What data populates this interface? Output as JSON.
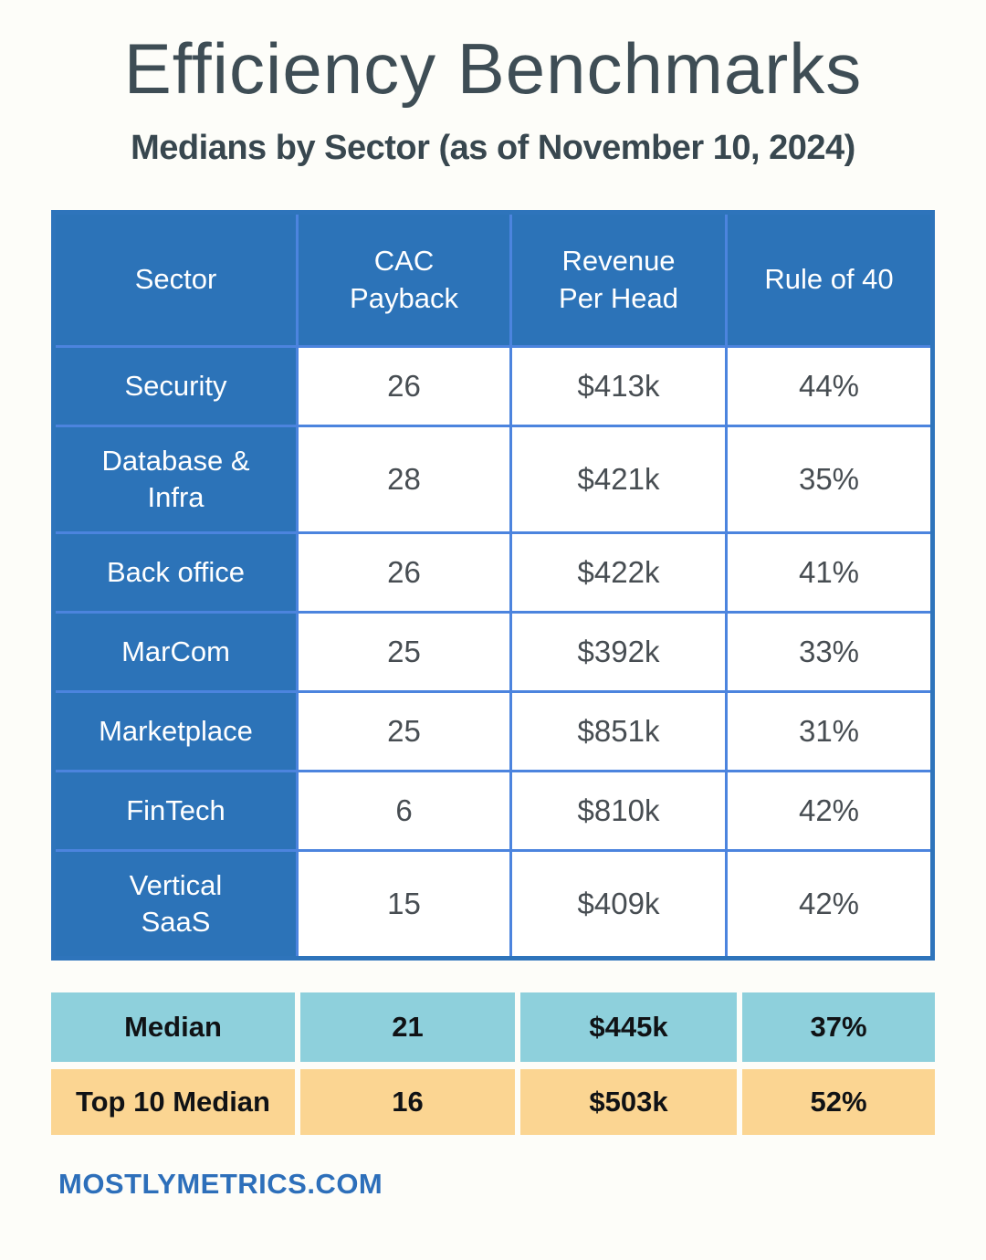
{
  "page": {
    "title": "Efficiency Benchmarks",
    "subtitle": "Medians by Sector (as of November 10, 2024)",
    "footer": "MOSTLYMETRICS.COM"
  },
  "colors": {
    "header_blue": "#2c73b8",
    "gridline_blue": "#4c84de",
    "outer_border_blue": "#2e74bb",
    "data_text": "#474d52",
    "title_text": "#3e4d55",
    "median_row_bg": "#8ed0dc",
    "top10_row_bg": "#fbd592",
    "footer_blue": "#2d6fba",
    "page_bg": "#fdfdf9"
  },
  "table": {
    "headers": [
      "Sector",
      "CAC Payback",
      "Revenue Per Head",
      "Rule of 40"
    ],
    "rows": [
      {
        "sector": "Security",
        "cac": "26",
        "revenue_per_head": "$413k",
        "rule_of_40": "44%"
      },
      {
        "sector": "Database & Infra",
        "cac": "28",
        "revenue_per_head": "$421k",
        "rule_of_40": "35%"
      },
      {
        "sector": "Back office",
        "cac": "26",
        "revenue_per_head": "$422k",
        "rule_of_40": "41%"
      },
      {
        "sector": "MarCom",
        "cac": "25",
        "revenue_per_head": "$392k",
        "rule_of_40": "33%"
      },
      {
        "sector": "Marketplace",
        "cac": "25",
        "revenue_per_head": "$851k",
        "rule_of_40": "31%"
      },
      {
        "sector": "FinTech",
        "cac": "6",
        "revenue_per_head": "$810k",
        "rule_of_40": "42%"
      },
      {
        "sector": "Vertical SaaS",
        "cac": "15",
        "revenue_per_head": "$409k",
        "rule_of_40": "42%"
      }
    ]
  },
  "summary": {
    "median": {
      "label": "Median",
      "cac": "21",
      "revenue_per_head": "$445k",
      "rule_of_40": "37%"
    },
    "top10": {
      "label": "Top 10 Median",
      "cac": "16",
      "revenue_per_head": "$503k",
      "rule_of_40": "52%"
    }
  },
  "chart_data": {
    "type": "table",
    "title": "Efficiency Benchmarks",
    "subtitle": "Medians by Sector (as of November 10, 2024)",
    "columns": [
      "Sector",
      "CAC Payback",
      "Revenue Per Head",
      "Rule of 40"
    ],
    "rows": [
      [
        "Security",
        26,
        "$413k",
        "44%"
      ],
      [
        "Database & Infra",
        28,
        "$421k",
        "35%"
      ],
      [
        "Back office",
        26,
        "$422k",
        "41%"
      ],
      [
        "MarCom",
        25,
        "$392k",
        "33%"
      ],
      [
        "Marketplace",
        25,
        "$851k",
        "31%"
      ],
      [
        "FinTech",
        6,
        "$810k",
        "42%"
      ],
      [
        "Vertical SaaS",
        15,
        "$409k",
        "42%"
      ]
    ],
    "summary_rows": [
      [
        "Median",
        21,
        "$445k",
        "37%"
      ],
      [
        "Top 10 Median",
        16,
        "$503k",
        "52%"
      ]
    ],
    "source": "MOSTLYMETRICS.COM"
  }
}
